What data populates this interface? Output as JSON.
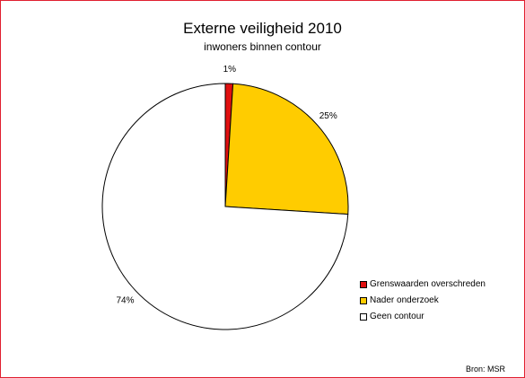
{
  "chart_data": {
    "type": "pie",
    "title": "Externe veiligheid 2010",
    "subtitle": "inwoners binnen contour",
    "slices": [
      {
        "label": "Grenswaarden overschreden",
        "value": 1,
        "display": "1%",
        "color": "#e01010"
      },
      {
        "label": "Nader onderzoek",
        "value": 25,
        "display": "25%",
        "color": "#ffcc00"
      },
      {
        "label": "Geen contour",
        "value": 74,
        "display": "74%",
        "color": "#ffffff"
      }
    ],
    "legend_position": "bottom-right",
    "source": "Bron: MSR"
  }
}
